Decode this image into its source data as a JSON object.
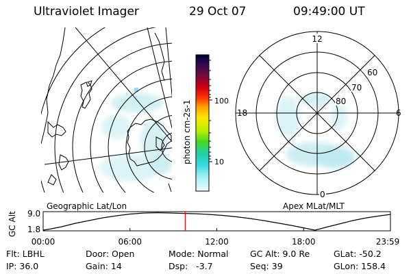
{
  "header": {
    "instrument": "Ultraviolet Imager",
    "date": "29 Oct 07",
    "time": "09:49:00 UT"
  },
  "geographic_panel": {
    "label": "Geographic Lat/Lon"
  },
  "magnetic_panel": {
    "label": "Apex MLat/MLT",
    "mlt_labels": [
      "12",
      "18",
      "6",
      "0"
    ],
    "lat_labels": [
      "60",
      "70",
      "80"
    ]
  },
  "colorbar": {
    "unit_label": "photon cm-2s-1",
    "ticks": [
      "100",
      "10"
    ],
    "colors": [
      "#000040",
      "#1a0a50",
      "#3a0a55",
      "#800018",
      "#c40010",
      "#ff0000",
      "#ff6a00",
      "#ffb000",
      "#ffe600",
      "#d9f000",
      "#7ee000",
      "#22d030",
      "#20d0a0",
      "#40e0e0",
      "#a0f0f0",
      "#dff8fa"
    ]
  },
  "altitude_plot": {
    "ylabel": "GC Alt",
    "yticks": [
      "9.0",
      "1.8"
    ],
    "xticks": [
      "00:00",
      "06:00",
      "12:00",
      "18:00",
      "23:59"
    ],
    "current_time_hours": 9.817,
    "line_color": "#ff0000"
  },
  "info": {
    "filter": "Flt: LBHL",
    "ip": "IP: 36.0",
    "door": "Door: Open",
    "gain": "Gain: 14",
    "mode": "Mode: Normal",
    "dsp": "Dsp:   -3.7",
    "gc_alt": "GC Alt: 9.0 Re",
    "seq": "Seq: 39",
    "glat": "GLat: -50.2",
    "glon": "GLon: 158.4"
  }
}
